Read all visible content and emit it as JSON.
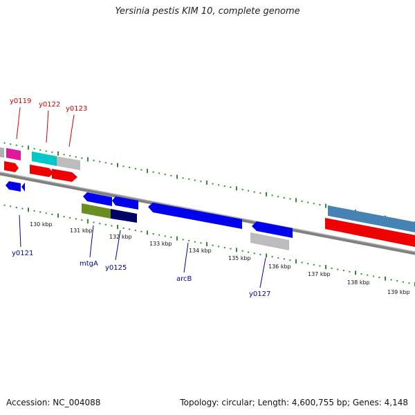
{
  "title": "Yersinia pestis KIM 10, complete genome",
  "footer": {
    "accession": "Accession: NC_004088",
    "topology": "Topology: circular; Length: 4,600,755 bp; Genes: 4,148"
  },
  "ticks": [
    {
      "label": "130 kbp"
    },
    {
      "label": "131 kbp"
    },
    {
      "label": "132 kbp"
    },
    {
      "label": "133 kbp"
    },
    {
      "label": "134 kbp"
    },
    {
      "label": "135 kbp"
    },
    {
      "label": "136 kbp"
    },
    {
      "label": "137 kbp"
    },
    {
      "label": "138 kbp"
    },
    {
      "label": "139 kbp"
    }
  ],
  "gene_labels_forward": [
    {
      "label": "y0119"
    },
    {
      "label": "y0122"
    },
    {
      "label": "y0123"
    }
  ],
  "gene_labels_reverse": [
    {
      "label": "y0121"
    },
    {
      "label": "mtgA"
    },
    {
      "label": "y0125"
    },
    {
      "label": "arcB"
    },
    {
      "label": "y0127"
    }
  ],
  "colors": {
    "backbone": "#808080",
    "tick": "#2e8b2e",
    "forward_label": "#cc0000",
    "reverse_label": "#000099",
    "blue_feature": "#0000ee",
    "red_feature": "#ee0000",
    "magenta_feature": "#ee1493",
    "cyan_feature": "#00cccc",
    "gray_feature": "#bbbbbb",
    "olive_feature": "#6b8e23",
    "navy_feature": "#000066",
    "steelblue_feature": "#4682b4"
  }
}
